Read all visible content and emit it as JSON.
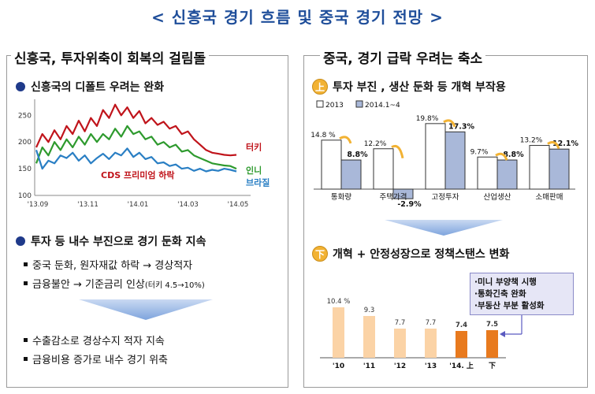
{
  "title": "< 신흥국  경기 흐름 및 중국 경기 전망 >",
  "left_panel": {
    "heading": "신흥국, 투자위축이 회복의 걸림돌",
    "section1": "신흥국의 디폴트 우려는 완화",
    "chart_annotation": "CDS 프리미엄 하락",
    "section2": "투자 등 내수 부진으로 경기 둔화 지속",
    "items_a": [
      "중국 둔화, 원자재값 하락 → 경상적자",
      "금융불안 → 기준금리 인상"
    ],
    "rate_note": "(터키 4.5→10%)",
    "items_b": [
      "수출감소로 경상수지 적자 지속",
      "금융비용 증가로 내수 경기 위축"
    ]
  },
  "right_panel": {
    "heading": "중국, 경기 급락 우려는 축소",
    "section1_tag": "上",
    "section1": "투자 부진 , 생산 둔화 등 개혁 부작용",
    "section2_tag": "下",
    "section2": "개혁 + 안정성장으로 정책스탠스 변화",
    "policy_items": [
      "·미니 부양책 시행",
      "·통화긴축 완화",
      "·부동산 부분 활성화"
    ]
  },
  "colors": {
    "title": "#1f4e9a",
    "turkey": "#c0141b",
    "indonesia": "#2e9a2e",
    "brazil": "#2a7fc4",
    "bar2013": "#ffffff",
    "bar2014": "#a9b8d9",
    "gdp_light": "#fbd3a6",
    "gdp_dark": "#e87a1e"
  },
  "chart_data": [
    {
      "type": "line",
      "title": "",
      "x_ticks": [
        "'13.09",
        "'13.11",
        "'14.01",
        "'14.03",
        "'14.05"
      ],
      "y_ticks": [
        100,
        150,
        200,
        250
      ],
      "ylim": [
        100,
        280
      ],
      "series": [
        {
          "name": "터키",
          "values": [
            190,
            215,
            200,
            222,
            205,
            230,
            215,
            240,
            220,
            245,
            230,
            260,
            245,
            270,
            250,
            265,
            245,
            258,
            235,
            245,
            232,
            238,
            225,
            230,
            215,
            220,
            205,
            195,
            185,
            180,
            178,
            176,
            175,
            176
          ]
        },
        {
          "name": "인니",
          "values": [
            160,
            190,
            175,
            200,
            185,
            205,
            190,
            210,
            195,
            215,
            200,
            215,
            205,
            225,
            210,
            230,
            215,
            220,
            205,
            210,
            195,
            200,
            190,
            195,
            182,
            185,
            175,
            170,
            165,
            160,
            158,
            156,
            155,
            150
          ]
        },
        {
          "name": "브라질",
          "values": [
            185,
            150,
            165,
            160,
            175,
            170,
            180,
            165,
            175,
            160,
            170,
            178,
            168,
            180,
            175,
            188,
            172,
            180,
            168,
            172,
            160,
            162,
            155,
            158,
            150,
            152,
            146,
            150,
            145,
            148,
            146,
            150,
            148,
            145
          ]
        }
      ]
    },
    {
      "type": "bar",
      "categories": [
        "통화량",
        "주택가격",
        "고정투자",
        "산업생산",
        "소매판매"
      ],
      "series": [
        {
          "name": "2013",
          "values": [
            14.8,
            12.2,
            19.8,
            9.7,
            13.2
          ],
          "labels": [
            "14.8 %",
            "12.2%",
            "19.8%",
            "9.7%",
            "13.2%"
          ]
        },
        {
          "name": "2014.1~4",
          "values": [
            8.8,
            -2.9,
            17.3,
            8.8,
            12.1
          ],
          "labels": [
            "8.8%",
            "-2.9%",
            "17.3%",
            "8.8%",
            "12.1%"
          ]
        }
      ]
    },
    {
      "type": "bar",
      "categories": [
        "'10",
        "'11",
        "'12",
        "'13",
        "'14. 上",
        "下"
      ],
      "values": [
        10.4,
        9.3,
        7.7,
        7.7,
        7.4,
        7.5
      ],
      "labels": [
        "10.4 %",
        "9.3",
        "7.7",
        "7.7",
        "7.4",
        "7.5"
      ]
    }
  ]
}
